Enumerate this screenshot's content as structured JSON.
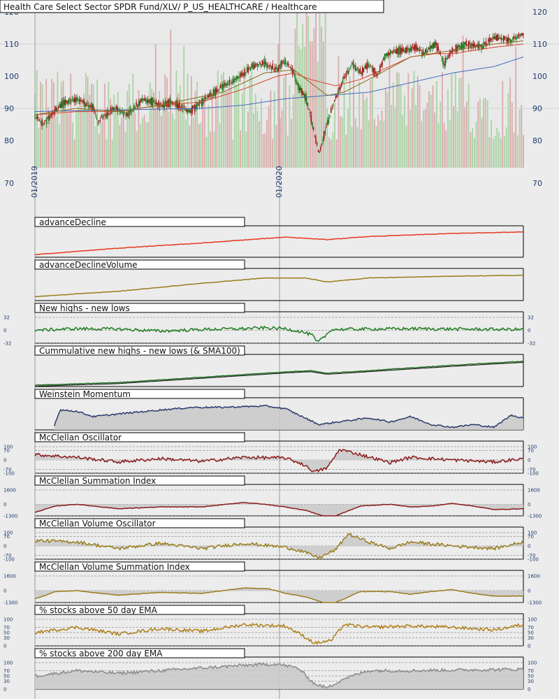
{
  "chart_data": [
    {
      "type": "candlestick",
      "title": "Health Care Select Sector SPDR Fund/XLV/ P_US_HEALTHCARE / Healthcare",
      "yticks": [
        70,
        80,
        90,
        100,
        110,
        120
      ],
      "ylim": [
        70,
        120
      ],
      "date_labels": [
        "01/2019",
        "01/2020"
      ],
      "series": [
        {
          "kind": "price",
          "color": "#1f7a1f",
          "down_color": "#a01818",
          "anchors": [
            [
              0,
              88
            ],
            [
              0.02,
              85
            ],
            [
              0.06,
              91
            ],
            [
              0.1,
              93
            ],
            [
              0.14,
              90
            ],
            [
              0.15,
              86
            ],
            [
              0.19,
              90
            ],
            [
              0.22,
              88
            ],
            [
              0.26,
              93
            ],
            [
              0.3,
              91
            ],
            [
              0.33,
              92
            ],
            [
              0.37,
              89
            ],
            [
              0.4,
              92
            ],
            [
              0.44,
              96
            ],
            [
              0.48,
              99
            ],
            [
              0.52,
              103
            ],
            [
              0.55,
              104
            ],
            [
              0.58,
              102
            ],
            [
              0.6,
              105
            ],
            [
              0.62,
              101
            ],
            [
              0.63,
              97
            ],
            [
              0.65,
              93
            ],
            [
              0.66,
              88
            ],
            [
              0.67,
              82
            ],
            [
              0.68,
              76
            ],
            [
              0.7,
              85
            ],
            [
              0.72,
              93
            ],
            [
              0.74,
              99
            ],
            [
              0.76,
              104
            ],
            [
              0.78,
              101
            ],
            [
              0.8,
              104
            ],
            [
              0.82,
              100
            ],
            [
              0.84,
              107
            ],
            [
              0.88,
              108
            ],
            [
              0.91,
              109
            ],
            [
              0.93,
              107
            ],
            [
              0.96,
              110
            ],
            [
              0.98,
              104
            ],
            [
              1.0,
              108
            ],
            [
              1.03,
              110
            ],
            [
              1.07,
              109
            ],
            [
              1.1,
              112
            ],
            [
              1.14,
              111
            ],
            [
              1.17,
              113
            ]
          ]
        },
        {
          "kind": "sma-red",
          "color": "#d9432b",
          "anchors": [
            [
              0,
              88
            ],
            [
              0.1,
              89
            ],
            [
              0.2,
              89
            ],
            [
              0.3,
              91
            ],
            [
              0.4,
              92
            ],
            [
              0.5,
              96
            ],
            [
              0.58,
              100
            ],
            [
              0.62,
              101
            ],
            [
              0.66,
              99
            ],
            [
              0.72,
              97
            ],
            [
              0.78,
              99
            ],
            [
              0.85,
              103
            ],
            [
              0.9,
              106
            ],
            [
              0.96,
              107
            ],
            [
              1.0,
              107
            ],
            [
              1.05,
              108
            ],
            [
              1.1,
              109
            ],
            [
              1.17,
              110
            ]
          ]
        },
        {
          "kind": "sma-blue",
          "color": "#3f6bbf",
          "anchors": [
            [
              0,
              89
            ],
            [
              0.2,
              89.5
            ],
            [
              0.4,
              90
            ],
            [
              0.5,
              91
            ],
            [
              0.6,
              93
            ],
            [
              0.7,
              94
            ],
            [
              0.8,
              95
            ],
            [
              0.9,
              98
            ],
            [
              1.0,
              101
            ],
            [
              1.1,
              103
            ],
            [
              1.17,
              106
            ]
          ]
        },
        {
          "kind": "ema-olive",
          "color": "#8a6a1c",
          "anchors": [
            [
              0,
              88
            ],
            [
              0.1,
              90
            ],
            [
              0.2,
              89
            ],
            [
              0.3,
              91
            ],
            [
              0.45,
              95
            ],
            [
              0.55,
              101
            ],
            [
              0.62,
              102
            ],
            [
              0.66,
              98
            ],
            [
              0.7,
              94
            ],
            [
              0.74,
              95
            ],
            [
              0.8,
              99
            ],
            [
              0.9,
              106
            ],
            [
              1.0,
              108
            ],
            [
              1.1,
              110
            ],
            [
              1.17,
              111
            ]
          ]
        }
      ]
    },
    {
      "type": "line",
      "title": "advanceDecline",
      "color": "#e43a1f",
      "fill": false,
      "zero_line": false,
      "anchors": [
        [
          0,
          0.1
        ],
        [
          0.2,
          0.35
        ],
        [
          0.4,
          0.55
        ],
        [
          0.6,
          0.78
        ],
        [
          0.7,
          0.68
        ],
        [
          0.8,
          0.8
        ],
        [
          1.0,
          0.92
        ],
        [
          1.17,
          0.98
        ]
      ]
    },
    {
      "type": "line",
      "title": "advanceDeclineVolume",
      "color": "#9a7d1c",
      "fill": false,
      "zero_line": false,
      "anchors": [
        [
          0,
          0.15
        ],
        [
          0.2,
          0.35
        ],
        [
          0.4,
          0.65
        ],
        [
          0.55,
          0.85
        ],
        [
          0.65,
          0.85
        ],
        [
          0.7,
          0.7
        ],
        [
          0.8,
          0.85
        ],
        [
          1.0,
          0.92
        ],
        [
          1.17,
          0.95
        ]
      ]
    },
    {
      "type": "line",
      "title": "New highs - new lows",
      "color": "#1e7d1e",
      "fill": false,
      "zero_line": true,
      "yticks": [
        32,
        0,
        -32
      ],
      "ylim": [
        -32,
        32
      ],
      "anchors": [
        [
          0,
          0
        ],
        [
          0.1,
          4
        ],
        [
          0.2,
          3
        ],
        [
          0.3,
          -2
        ],
        [
          0.4,
          2
        ],
        [
          0.5,
          4
        ],
        [
          0.55,
          6
        ],
        [
          0.6,
          4
        ],
        [
          0.64,
          -4
        ],
        [
          0.665,
          -12
        ],
        [
          0.675,
          -30
        ],
        [
          0.69,
          -20
        ],
        [
          0.71,
          2
        ],
        [
          0.8,
          3
        ],
        [
          0.9,
          4
        ],
        [
          1.0,
          3
        ],
        [
          1.17,
          2
        ]
      ]
    },
    {
      "type": "line",
      "title": "Cummulative new highs - new lows (& SMA100)",
      "color": "#1e6b1e",
      "fill": false,
      "zero_line": false,
      "second_color": "#111111",
      "anchors": [
        [
          0,
          0.05
        ],
        [
          0.2,
          0.15
        ],
        [
          0.4,
          0.35
        ],
        [
          0.6,
          0.55
        ],
        [
          0.66,
          0.6
        ],
        [
          0.7,
          0.5
        ],
        [
          0.8,
          0.6
        ],
        [
          1.0,
          0.8
        ],
        [
          1.17,
          0.95
        ]
      ]
    },
    {
      "type": "area",
      "title": "Weinstein Momentum",
      "color": "#2b3a6e",
      "fill": true,
      "zero_line": false,
      "anchors": [
        [
          0.046,
          0.15
        ],
        [
          0.06,
          0.75
        ],
        [
          0.1,
          0.7
        ],
        [
          0.14,
          0.5
        ],
        [
          0.2,
          0.6
        ],
        [
          0.3,
          0.75
        ],
        [
          0.38,
          0.85
        ],
        [
          0.45,
          0.85
        ],
        [
          0.55,
          0.9
        ],
        [
          0.6,
          0.8
        ],
        [
          0.64,
          0.5
        ],
        [
          0.68,
          0.2
        ],
        [
          0.75,
          0.35
        ],
        [
          0.8,
          0.45
        ],
        [
          0.85,
          0.3
        ],
        [
          0.9,
          0.5
        ],
        [
          0.95,
          0.2
        ],
        [
          1.0,
          0.1
        ],
        [
          1.05,
          0.2
        ],
        [
          1.1,
          0.1
        ],
        [
          1.14,
          0.55
        ],
        [
          1.17,
          0.45
        ]
      ]
    },
    {
      "type": "line",
      "title": "McClellan Oscillator",
      "color": "#8b1a1a",
      "fill": true,
      "zero_line": true,
      "yticks": [
        100,
        70,
        0,
        -70,
        -100
      ],
      "ylim": [
        -100,
        100
      ],
      "anchors": [
        [
          0,
          40
        ],
        [
          0.1,
          20
        ],
        [
          0.2,
          -15
        ],
        [
          0.3,
          10
        ],
        [
          0.4,
          -10
        ],
        [
          0.5,
          20
        ],
        [
          0.6,
          15
        ],
        [
          0.64,
          -30
        ],
        [
          0.67,
          -90
        ],
        [
          0.7,
          -60
        ],
        [
          0.73,
          80
        ],
        [
          0.78,
          40
        ],
        [
          0.85,
          -20
        ],
        [
          0.9,
          20
        ],
        [
          1.0,
          0
        ],
        [
          1.1,
          -15
        ],
        [
          1.17,
          10
        ]
      ]
    },
    {
      "type": "line",
      "title": "McClellan Summation Index",
      "color": "#8b1a1a",
      "fill": true,
      "zero_line": true,
      "yticks": [
        1600,
        0,
        -1300
      ],
      "ylim": [
        -1300,
        1600
      ],
      "anchors": [
        [
          0,
          -900
        ],
        [
          0.05,
          -200
        ],
        [
          0.1,
          0
        ],
        [
          0.2,
          -500
        ],
        [
          0.3,
          -300
        ],
        [
          0.4,
          -300
        ],
        [
          0.5,
          200
        ],
        [
          0.55,
          0
        ],
        [
          0.6,
          -300
        ],
        [
          0.65,
          -700
        ],
        [
          0.69,
          -1300
        ],
        [
          0.72,
          -1300
        ],
        [
          0.78,
          -200
        ],
        [
          0.85,
          0
        ],
        [
          0.9,
          -300
        ],
        [
          0.95,
          -200
        ],
        [
          1.0,
          100
        ],
        [
          1.05,
          -200
        ],
        [
          1.1,
          -600
        ],
        [
          1.17,
          -500
        ]
      ]
    },
    {
      "type": "line",
      "title": "McClellan Volume Oscillator",
      "color": "#9a7d1c",
      "fill": true,
      "zero_line": true,
      "yticks": [
        100,
        70,
        0,
        -70,
        -100
      ],
      "ylim": [
        -100,
        100
      ],
      "anchors": [
        [
          0,
          40
        ],
        [
          0.1,
          30
        ],
        [
          0.2,
          -20
        ],
        [
          0.3,
          20
        ],
        [
          0.4,
          -20
        ],
        [
          0.5,
          20
        ],
        [
          0.6,
          -10
        ],
        [
          0.64,
          -40
        ],
        [
          0.68,
          -90
        ],
        [
          0.72,
          -30
        ],
        [
          0.75,
          90
        ],
        [
          0.8,
          30
        ],
        [
          0.85,
          -20
        ],
        [
          0.9,
          30
        ],
        [
          1.0,
          0
        ],
        [
          1.1,
          -20
        ],
        [
          1.17,
          30
        ]
      ]
    },
    {
      "type": "line",
      "title": "McClellan Volume Summation Index",
      "color": "#9a7d1c",
      "fill": true,
      "zero_line": true,
      "yticks": [
        1600,
        0,
        -1300
      ],
      "ylim": [
        -1300,
        1600
      ],
      "anchors": [
        [
          0,
          -900
        ],
        [
          0.05,
          -100
        ],
        [
          0.1,
          0
        ],
        [
          0.2,
          -500
        ],
        [
          0.3,
          -200
        ],
        [
          0.4,
          -300
        ],
        [
          0.5,
          300
        ],
        [
          0.56,
          200
        ],
        [
          0.6,
          -300
        ],
        [
          0.65,
          -700
        ],
        [
          0.69,
          -1300
        ],
        [
          0.72,
          -1300
        ],
        [
          0.78,
          -100
        ],
        [
          0.85,
          -100
        ],
        [
          0.9,
          -400
        ],
        [
          0.95,
          -100
        ],
        [
          1.0,
          100
        ],
        [
          1.05,
          -300
        ],
        [
          1.1,
          -600
        ],
        [
          1.17,
          -600
        ]
      ]
    },
    {
      "type": "line",
      "title": "% stocks above 50 day EMA",
      "color": "#b07f16",
      "fill": false,
      "zero_line": false,
      "yticks": [
        100,
        70,
        50,
        30,
        0
      ],
      "ylim": [
        0,
        100
      ],
      "anchors": [
        [
          0,
          50
        ],
        [
          0.1,
          70
        ],
        [
          0.2,
          45
        ],
        [
          0.3,
          65
        ],
        [
          0.4,
          55
        ],
        [
          0.5,
          80
        ],
        [
          0.6,
          75
        ],
        [
          0.64,
          40
        ],
        [
          0.67,
          10
        ],
        [
          0.71,
          20
        ],
        [
          0.74,
          80
        ],
        [
          0.8,
          70
        ],
        [
          0.9,
          75
        ],
        [
          1.0,
          70
        ],
        [
          1.1,
          60
        ],
        [
          1.17,
          80
        ]
      ]
    },
    {
      "type": "line",
      "title": "% stocks above 200 day EMA",
      "color": "#8a8a8a",
      "fill": true,
      "zero_line": false,
      "yticks": [
        100,
        70,
        50,
        30,
        0
      ],
      "ylim": [
        0,
        100
      ],
      "anchors": [
        [
          0,
          50
        ],
        [
          0.1,
          70
        ],
        [
          0.2,
          60
        ],
        [
          0.3,
          70
        ],
        [
          0.4,
          80
        ],
        [
          0.5,
          90
        ],
        [
          0.58,
          95
        ],
        [
          0.63,
          80
        ],
        [
          0.67,
          20
        ],
        [
          0.7,
          5
        ],
        [
          0.74,
          40
        ],
        [
          0.8,
          70
        ],
        [
          0.9,
          70
        ],
        [
          1.0,
          72
        ],
        [
          1.1,
          74
        ],
        [
          1.17,
          75
        ]
      ]
    }
  ]
}
